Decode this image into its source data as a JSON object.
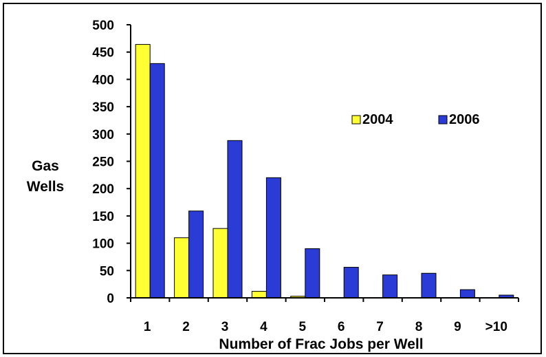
{
  "chart_data": {
    "type": "bar",
    "title": "",
    "xlabel": "Number of Frac Jobs per Well",
    "ylabel_lines": [
      "Gas",
      "Wells"
    ],
    "categories": [
      "1",
      "2",
      "3",
      "4",
      "5",
      "6",
      "7",
      "8",
      "9",
      ">10"
    ],
    "series": [
      {
        "name": "2004",
        "color": "#ffff33",
        "values": [
          464,
          110,
          127,
          12,
          3,
          0,
          0,
          0,
          0,
          0
        ]
      },
      {
        "name": "2006",
        "color": "#2a3bd6",
        "values": [
          429,
          159,
          288,
          220,
          90,
          56,
          42,
          45,
          15,
          5
        ]
      }
    ],
    "ylim": [
      0,
      500
    ],
    "yticks": [
      0,
      50,
      100,
      150,
      200,
      250,
      300,
      350,
      400,
      450,
      500
    ],
    "grid": false,
    "legend_position": "center-right"
  }
}
